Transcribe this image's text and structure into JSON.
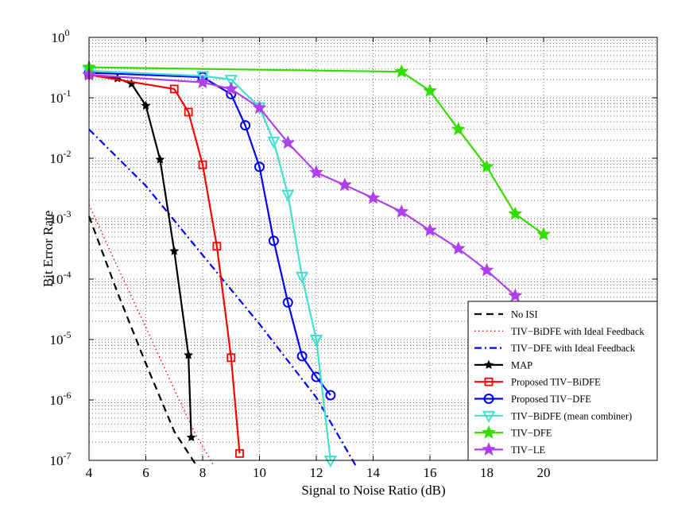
{
  "chart_data": {
    "type": "line",
    "title": "",
    "xlabel": "Signal to Noise Ratio (dB)",
    "ylabel": "Bit Error Rate",
    "xlim": [
      4,
      24
    ],
    "ylim": [
      1e-07,
      1
    ],
    "yscale": "log",
    "grid": true,
    "legend_position": "bottom-right",
    "x_ticks": [
      "4",
      "6",
      "8",
      "10",
      "12",
      "14",
      "16",
      "18",
      "20"
    ],
    "y_tick_labels": [
      {
        "base": "10",
        "exp": "0"
      },
      {
        "base": "10",
        "exp": "-1"
      },
      {
        "base": "10",
        "exp": "-2"
      },
      {
        "base": "10",
        "exp": "-3"
      },
      {
        "base": "10",
        "exp": "-4"
      },
      {
        "base": "10",
        "exp": "-5"
      },
      {
        "base": "10",
        "exp": "-6"
      },
      {
        "base": "10",
        "exp": "-7"
      }
    ],
    "series": [
      {
        "name": "No ISI",
        "color": "#000000",
        "line": "dashed",
        "marker": "none",
        "x": [
          4,
          5,
          6,
          7,
          7.8
        ],
        "y": [
          0.0011,
          6e-05,
          4e-06,
          3e-07,
          8e-08
        ]
      },
      {
        "name": "TIV−BiDFE with Ideal Feedback",
        "color": "#ff0000",
        "line": "dotted",
        "marker": "none",
        "x": [
          4,
          5,
          6,
          7,
          7.7,
          8.4
        ],
        "y": [
          0.0017,
          0.00016,
          1.6e-05,
          1.5e-06,
          3e-07,
          8e-08
        ]
      },
      {
        "name": "TIV−DFE with Ideal Feedback",
        "color": "#0000ff",
        "line": "dashdot",
        "marker": "none",
        "x": [
          4,
          6,
          8,
          10,
          12,
          13.4
        ],
        "y": [
          0.03,
          0.0035,
          0.00025,
          1.8e-05,
          1.1e-06,
          8e-08
        ]
      },
      {
        "name": "MAP",
        "color": "#000000",
        "line": "solid",
        "marker": "star-small",
        "x": [
          4,
          5,
          5.5,
          6,
          6.5,
          7,
          7.5,
          7.6
        ],
        "y": [
          0.24,
          0.21,
          0.17,
          0.074,
          0.0095,
          0.00029,
          5.5e-06,
          2.4e-07
        ]
      },
      {
        "name": "Proposed TIV−BiDFE",
        "color": "#ff0000",
        "line": "solid",
        "marker": "square",
        "x": [
          4,
          7,
          7.5,
          8,
          8.5,
          9,
          9.3
        ],
        "y": [
          0.24,
          0.14,
          0.058,
          0.0078,
          0.00035,
          5e-06,
          1.3e-07
        ]
      },
      {
        "name": "Proposed TIV−DFE",
        "color": "#0000ff",
        "line": "solid",
        "marker": "circle",
        "x": [
          4,
          8,
          9,
          9.5,
          10,
          10.5,
          11,
          11.5,
          12,
          12.5
        ],
        "y": [
          0.26,
          0.22,
          0.115,
          0.035,
          0.0072,
          0.00043,
          4.1e-05,
          5.3e-06,
          2.4e-06,
          1.2e-06
        ]
      },
      {
        "name": "TIV−BiDFE (mean combiner)",
        "color": "#40e0d0",
        "line": "solid",
        "marker": "triangle-down",
        "x": [
          4,
          8,
          9,
          10,
          10.5,
          11,
          11.5,
          12,
          12.5
        ],
        "y": [
          0.28,
          0.23,
          0.2,
          0.07,
          0.019,
          0.0025,
          0.00011,
          1e-05,
          1e-07
        ]
      },
      {
        "name": "TIV−DFE",
        "color": "#33dd00",
        "line": "solid",
        "marker": "star",
        "x": [
          4,
          15,
          16,
          17,
          18,
          19,
          20
        ],
        "y": [
          0.32,
          0.27,
          0.13,
          0.03,
          0.0072,
          0.0012,
          0.00055
        ]
      },
      {
        "name": "TIV−LE",
        "color": "#b040ee",
        "line": "solid",
        "marker": "star",
        "x": [
          4,
          8,
          9,
          10,
          11,
          12,
          13,
          14,
          15,
          16,
          17,
          18,
          19
        ],
        "y": [
          0.24,
          0.18,
          0.14,
          0.068,
          0.018,
          0.0058,
          0.0036,
          0.0022,
          0.0013,
          0.00064,
          0.00032,
          0.00014,
          5.3e-05
        ]
      }
    ]
  }
}
